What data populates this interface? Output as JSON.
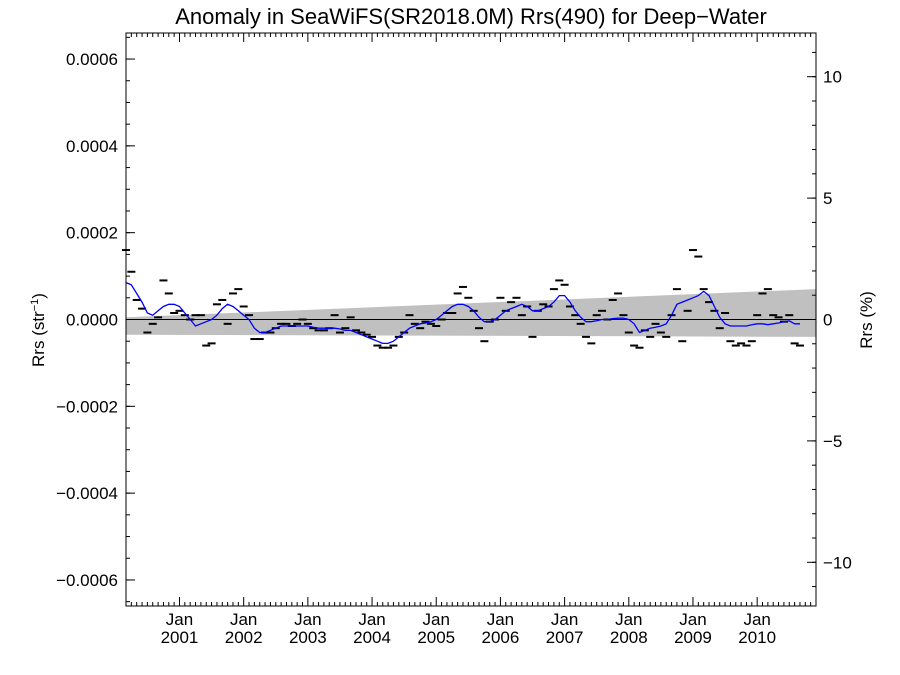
{
  "chart_data": {
    "type": "scatter",
    "title": "Anomaly in SeaWiFS(SR2018.0M) Rrs(490) for Deep−Water",
    "ylabel": "Rrs (str",
    "ylabel_sup": "−1",
    "ylabel_close": ")",
    "y2label": "Rrs (%)",
    "xlim": [
      "2000-03",
      "2010-12"
    ],
    "ylim": [
      -0.00066,
      0.00066
    ],
    "y2lim": [
      -11.8,
      11.8
    ],
    "yticks": [
      {
        "v": -0.0006,
        "label": "−0.0006"
      },
      {
        "v": -0.0004,
        "label": "−0.0004"
      },
      {
        "v": -0.0002,
        "label": "−0.0002"
      },
      {
        "v": 0.0,
        "label": "0.0000"
      },
      {
        "v": 0.0002,
        "label": "0.0002"
      },
      {
        "v": 0.0004,
        "label": "0.0004"
      },
      {
        "v": 0.0006,
        "label": "0.0006"
      }
    ],
    "y2ticks": [
      {
        "v": -10,
        "label": "−10"
      },
      {
        "v": -5,
        "label": "−5"
      },
      {
        "v": 0,
        "label": "0"
      },
      {
        "v": 5,
        "label": "5"
      },
      {
        "v": 10,
        "label": "10"
      }
    ],
    "xticks": [
      {
        "date": "2001-01",
        "month": "Jan",
        "year": "2001"
      },
      {
        "date": "2002-01",
        "month": "Jan",
        "year": "2002"
      },
      {
        "date": "2003-01",
        "month": "Jan",
        "year": "2003"
      },
      {
        "date": "2004-01",
        "month": "Jan",
        "year": "2004"
      },
      {
        "date": "2005-01",
        "month": "Jan",
        "year": "2005"
      },
      {
        "date": "2006-01",
        "month": "Jan",
        "year": "2006"
      },
      {
        "date": "2007-01",
        "month": "Jan",
        "year": "2007"
      },
      {
        "date": "2008-01",
        "month": "Jan",
        "year": "2008"
      },
      {
        "date": "2009-01",
        "month": "Jan",
        "year": "2009"
      },
      {
        "date": "2010-01",
        "month": "Jan",
        "year": "2010"
      }
    ],
    "trend_band": {
      "start": "2000-03",
      "end": "2010-12",
      "upper": [
        5e-06,
        7e-05
      ],
      "lower": [
        -3.5e-05,
        -4e-05
      ]
    },
    "zero_line": 0.0,
    "colors": {
      "band": "#c0c0c0",
      "smooth": "#0000ff",
      "points": "#000000",
      "zero": "#000000"
    },
    "monthly_anomalies": [
      {
        "date": "2000-03",
        "y": 0.00016
      },
      {
        "date": "2000-04",
        "y": 0.00011
      },
      {
        "date": "2000-05",
        "y": 4.5e-05
      },
      {
        "date": "2000-06",
        "y": 2.5e-05
      },
      {
        "date": "2000-07",
        "y": -3e-05
      },
      {
        "date": "2000-08",
        "y": -1e-05
      },
      {
        "date": "2000-09",
        "y": 5e-06
      },
      {
        "date": "2000-10",
        "y": 9e-05
      },
      {
        "date": "2000-11",
        "y": 6e-05
      },
      {
        "date": "2000-12",
        "y": 1.5e-05
      },
      {
        "date": "2001-01",
        "y": 2e-05
      },
      {
        "date": "2001-02",
        "y": 1e-05
      },
      {
        "date": "2001-03",
        "y": 0.0
      },
      {
        "date": "2001-04",
        "y": 1e-05
      },
      {
        "date": "2001-05",
        "y": 1e-05
      },
      {
        "date": "2001-06",
        "y": -6e-05
      },
      {
        "date": "2001-07",
        "y": -5.5e-05
      },
      {
        "date": "2001-08",
        "y": 3.5e-05
      },
      {
        "date": "2001-09",
        "y": 4.5e-05
      },
      {
        "date": "2001-10",
        "y": -1e-05
      },
      {
        "date": "2001-11",
        "y": 6e-05
      },
      {
        "date": "2001-12",
        "y": 7e-05
      },
      {
        "date": "2002-01",
        "y": 3e-05
      },
      {
        "date": "2002-02",
        "y": 1e-05
      },
      {
        "date": "2002-03",
        "y": -4.5e-05
      },
      {
        "date": "2002-04",
        "y": -4.5e-05
      },
      {
        "date": "2002-05",
        "y": -3e-05
      },
      {
        "date": "2002-06",
        "y": -3e-05
      },
      {
        "date": "2002-07",
        "y": -2e-05
      },
      {
        "date": "2002-08",
        "y": -1e-05
      },
      {
        "date": "2002-09",
        "y": -1e-05
      },
      {
        "date": "2002-10",
        "y": -1.5e-05
      },
      {
        "date": "2002-11",
        "y": -1e-05
      },
      {
        "date": "2002-12",
        "y": 0.0
      },
      {
        "date": "2003-01",
        "y": -1e-05
      },
      {
        "date": "2003-02",
        "y": -2e-05
      },
      {
        "date": "2003-03",
        "y": -2.5e-05
      },
      {
        "date": "2003-04",
        "y": -2.5e-05
      },
      {
        "date": "2003-05",
        "y": -2e-05
      },
      {
        "date": "2003-06",
        "y": 1e-05
      },
      {
        "date": "2003-07",
        "y": -3e-05
      },
      {
        "date": "2003-08",
        "y": -2e-05
      },
      {
        "date": "2003-09",
        "y": 5e-06
      },
      {
        "date": "2003-10",
        "y": -2.5e-05
      },
      {
        "date": "2003-11",
        "y": -3e-05
      },
      {
        "date": "2003-12",
        "y": -3.5e-05
      },
      {
        "date": "2004-01",
        "y": -4e-05
      },
      {
        "date": "2004-02",
        "y": -6e-05
      },
      {
        "date": "2004-03",
        "y": -6.5e-05
      },
      {
        "date": "2004-04",
        "y": -6.5e-05
      },
      {
        "date": "2004-05",
        "y": -6e-05
      },
      {
        "date": "2004-06",
        "y": -4e-05
      },
      {
        "date": "2004-07",
        "y": -3e-05
      },
      {
        "date": "2004-08",
        "y": 1e-05
      },
      {
        "date": "2004-09",
        "y": -1e-05
      },
      {
        "date": "2004-10",
        "y": -2e-05
      },
      {
        "date": "2004-11",
        "y": -5e-06
      },
      {
        "date": "2004-12",
        "y": -1e-05
      },
      {
        "date": "2005-01",
        "y": -1.5e-05
      },
      {
        "date": "2005-02",
        "y": 0.0
      },
      {
        "date": "2005-03",
        "y": 1.5e-05
      },
      {
        "date": "2005-04",
        "y": 1.5e-05
      },
      {
        "date": "2005-05",
        "y": 6e-05
      },
      {
        "date": "2005-06",
        "y": 7.5e-05
      },
      {
        "date": "2005-07",
        "y": 5e-05
      },
      {
        "date": "2005-08",
        "y": 2e-05
      },
      {
        "date": "2005-09",
        "y": -2e-05
      },
      {
        "date": "2005-10",
        "y": -5e-05
      },
      {
        "date": "2005-11",
        "y": -5e-06
      },
      {
        "date": "2005-12",
        "y": 0.0
      },
      {
        "date": "2006-01",
        "y": 5e-05
      },
      {
        "date": "2006-02",
        "y": 2e-05
      },
      {
        "date": "2006-03",
        "y": 4e-05
      },
      {
        "date": "2006-04",
        "y": 5e-05
      },
      {
        "date": "2006-05",
        "y": 1e-05
      },
      {
        "date": "2006-06",
        "y": 3e-05
      },
      {
        "date": "2006-07",
        "y": -4e-05
      },
      {
        "date": "2006-08",
        "y": 2e-05
      },
      {
        "date": "2006-09",
        "y": 3.5e-05
      },
      {
        "date": "2006-10",
        "y": 3e-05
      },
      {
        "date": "2006-11",
        "y": 7e-05
      },
      {
        "date": "2006-12",
        "y": 9e-05
      },
      {
        "date": "2007-01",
        "y": 8e-05
      },
      {
        "date": "2007-02",
        "y": 3e-05
      },
      {
        "date": "2007-03",
        "y": 1e-05
      },
      {
        "date": "2007-04",
        "y": -1e-05
      },
      {
        "date": "2007-05",
        "y": -4e-05
      },
      {
        "date": "2007-06",
        "y": -5.5e-05
      },
      {
        "date": "2007-07",
        "y": 1e-05
      },
      {
        "date": "2007-08",
        "y": 2e-05
      },
      {
        "date": "2007-09",
        "y": 0.0
      },
      {
        "date": "2007-10",
        "y": 4.5e-05
      },
      {
        "date": "2007-11",
        "y": 6e-05
      },
      {
        "date": "2007-12",
        "y": 1e-05
      },
      {
        "date": "2008-01",
        "y": -3e-05
      },
      {
        "date": "2008-02",
        "y": -6e-05
      },
      {
        "date": "2008-03",
        "y": -6.5e-05
      },
      {
        "date": "2008-04",
        "y": -2.5e-05
      },
      {
        "date": "2008-05",
        "y": -4e-05
      },
      {
        "date": "2008-06",
        "y": -1e-05
      },
      {
        "date": "2008-07",
        "y": -3e-05
      },
      {
        "date": "2008-08",
        "y": -4e-05
      },
      {
        "date": "2008-09",
        "y": 1e-05
      },
      {
        "date": "2008-10",
        "y": 7e-05
      },
      {
        "date": "2008-11",
        "y": -5e-05
      },
      {
        "date": "2008-12",
        "y": 2e-05
      },
      {
        "date": "2009-01",
        "y": 0.00016
      },
      {
        "date": "2009-02",
        "y": 0.000145
      },
      {
        "date": "2009-03",
        "y": 7e-05
      },
      {
        "date": "2009-04",
        "y": 4e-05
      },
      {
        "date": "2009-05",
        "y": 2e-05
      },
      {
        "date": "2009-06",
        "y": -2e-05
      },
      {
        "date": "2009-07",
        "y": 1.5e-05
      },
      {
        "date": "2009-08",
        "y": -5e-05
      },
      {
        "date": "2009-09",
        "y": -6e-05
      },
      {
        "date": "2009-10",
        "y": -5.5e-05
      },
      {
        "date": "2009-11",
        "y": -6e-05
      },
      {
        "date": "2009-12",
        "y": -5e-05
      },
      {
        "date": "2010-01",
        "y": 1e-05
      },
      {
        "date": "2010-02",
        "y": 6e-05
      },
      {
        "date": "2010-03",
        "y": 7e-05
      },
      {
        "date": "2010-04",
        "y": 1e-05
      },
      {
        "date": "2010-05",
        "y": 5e-06
      },
      {
        "date": "2010-06",
        "y": -5e-06
      },
      {
        "date": "2010-07",
        "y": 1e-05
      },
      {
        "date": "2010-08",
        "y": -5.5e-05
      },
      {
        "date": "2010-09",
        "y": -6e-05
      }
    ],
    "smoothed": [
      {
        "date": "2000-03",
        "y": 8.5e-05
      },
      {
        "date": "2000-04",
        "y": 8e-05
      },
      {
        "date": "2000-05",
        "y": 6e-05
      },
      {
        "date": "2000-06",
        "y": 4e-05
      },
      {
        "date": "2000-07",
        "y": 1.5e-05
      },
      {
        "date": "2000-08",
        "y": 1e-05
      },
      {
        "date": "2000-09",
        "y": 2e-05
      },
      {
        "date": "2000-10",
        "y": 3e-05
      },
      {
        "date": "2000-11",
        "y": 3.5e-05
      },
      {
        "date": "2000-12",
        "y": 3.5e-05
      },
      {
        "date": "2001-01",
        "y": 3e-05
      },
      {
        "date": "2001-02",
        "y": 1.5e-05
      },
      {
        "date": "2001-03",
        "y": 0.0
      },
      {
        "date": "2001-04",
        "y": -1.5e-05
      },
      {
        "date": "2001-05",
        "y": -1e-05
      },
      {
        "date": "2001-06",
        "y": -5e-06
      },
      {
        "date": "2001-07",
        "y": 0.0
      },
      {
        "date": "2001-08",
        "y": 1e-05
      },
      {
        "date": "2001-09",
        "y": 2.5e-05
      },
      {
        "date": "2001-10",
        "y": 3.5e-05
      },
      {
        "date": "2001-11",
        "y": 3e-05
      },
      {
        "date": "2001-12",
        "y": 2e-05
      },
      {
        "date": "2002-01",
        "y": 1e-05
      },
      {
        "date": "2002-02",
        "y": 0.0
      },
      {
        "date": "2002-03",
        "y": -2e-05
      },
      {
        "date": "2002-04",
        "y": -3e-05
      },
      {
        "date": "2002-05",
        "y": -3e-05
      },
      {
        "date": "2002-06",
        "y": -2.5e-05
      },
      {
        "date": "2002-07",
        "y": -2e-05
      },
      {
        "date": "2002-08",
        "y": -1.5e-05
      },
      {
        "date": "2002-09",
        "y": -1.5e-05
      },
      {
        "date": "2002-10",
        "y": -1.5e-05
      },
      {
        "date": "2002-11",
        "y": -1.5e-05
      },
      {
        "date": "2002-12",
        "y": -1.5e-05
      },
      {
        "date": "2003-01",
        "y": -1.5e-05
      },
      {
        "date": "2003-02",
        "y": -1.8e-05
      },
      {
        "date": "2003-03",
        "y": -2e-05
      },
      {
        "date": "2003-04",
        "y": -2e-05
      },
      {
        "date": "2003-05",
        "y": -2e-05
      },
      {
        "date": "2003-06",
        "y": -2e-05
      },
      {
        "date": "2003-07",
        "y": -2.2e-05
      },
      {
        "date": "2003-08",
        "y": -2.5e-05
      },
      {
        "date": "2003-09",
        "y": -2.5e-05
      },
      {
        "date": "2003-10",
        "y": -3e-05
      },
      {
        "date": "2003-11",
        "y": -3.5e-05
      },
      {
        "date": "2003-12",
        "y": -4e-05
      },
      {
        "date": "2004-01",
        "y": -4.5e-05
      },
      {
        "date": "2004-02",
        "y": -5e-05
      },
      {
        "date": "2004-03",
        "y": -5.5e-05
      },
      {
        "date": "2004-04",
        "y": -5.5e-05
      },
      {
        "date": "2004-05",
        "y": -5e-05
      },
      {
        "date": "2004-06",
        "y": -4e-05
      },
      {
        "date": "2004-07",
        "y": -3e-05
      },
      {
        "date": "2004-08",
        "y": -2e-05
      },
      {
        "date": "2004-09",
        "y": -1.5e-05
      },
      {
        "date": "2004-10",
        "y": -1e-05
      },
      {
        "date": "2004-11",
        "y": -8e-06
      },
      {
        "date": "2004-12",
        "y": -5e-06
      },
      {
        "date": "2005-01",
        "y": 0.0
      },
      {
        "date": "2005-02",
        "y": 1e-05
      },
      {
        "date": "2005-03",
        "y": 2e-05
      },
      {
        "date": "2005-04",
        "y": 3e-05
      },
      {
        "date": "2005-05",
        "y": 3.5e-05
      },
      {
        "date": "2005-06",
        "y": 3.5e-05
      },
      {
        "date": "2005-07",
        "y": 3e-05
      },
      {
        "date": "2005-08",
        "y": 2e-05
      },
      {
        "date": "2005-09",
        "y": 5e-06
      },
      {
        "date": "2005-10",
        "y": -5e-06
      },
      {
        "date": "2005-11",
        "y": -5e-06
      },
      {
        "date": "2005-12",
        "y": 0.0
      },
      {
        "date": "2006-01",
        "y": 1e-05
      },
      {
        "date": "2006-02",
        "y": 2e-05
      },
      {
        "date": "2006-03",
        "y": 2.5e-05
      },
      {
        "date": "2006-04",
        "y": 3e-05
      },
      {
        "date": "2006-05",
        "y": 3.5e-05
      },
      {
        "date": "2006-06",
        "y": 3e-05
      },
      {
        "date": "2006-07",
        "y": 2e-05
      },
      {
        "date": "2006-08",
        "y": 2e-05
      },
      {
        "date": "2006-09",
        "y": 2.5e-05
      },
      {
        "date": "2006-10",
        "y": 3e-05
      },
      {
        "date": "2006-11",
        "y": 4e-05
      },
      {
        "date": "2006-12",
        "y": 5.5e-05
      },
      {
        "date": "2007-01",
        "y": 5.5e-05
      },
      {
        "date": "2007-02",
        "y": 4e-05
      },
      {
        "date": "2007-03",
        "y": 2e-05
      },
      {
        "date": "2007-04",
        "y": 5e-06
      },
      {
        "date": "2007-05",
        "y": -5e-06
      },
      {
        "date": "2007-06",
        "y": -5e-06
      },
      {
        "date": "2007-07",
        "y": -3e-06
      },
      {
        "date": "2007-08",
        "y": 0.0
      },
      {
        "date": "2007-09",
        "y": 0.0
      },
      {
        "date": "2007-10",
        "y": 2e-06
      },
      {
        "date": "2007-11",
        "y": 3e-06
      },
      {
        "date": "2007-12",
        "y": 3e-06
      },
      {
        "date": "2008-01",
        "y": 0.0
      },
      {
        "date": "2008-02",
        "y": -1e-05
      },
      {
        "date": "2008-03",
        "y": -3e-05
      },
      {
        "date": "2008-04",
        "y": -2.5e-05
      },
      {
        "date": "2008-05",
        "y": -2e-05
      },
      {
        "date": "2008-06",
        "y": -1.8e-05
      },
      {
        "date": "2008-07",
        "y": -1.5e-05
      },
      {
        "date": "2008-08",
        "y": -1e-05
      },
      {
        "date": "2008-09",
        "y": 1e-05
      },
      {
        "date": "2008-10",
        "y": 3.5e-05
      },
      {
        "date": "2008-11",
        "y": 4e-05
      },
      {
        "date": "2008-12",
        "y": 4.5e-05
      },
      {
        "date": "2009-01",
        "y": 5e-05
      },
      {
        "date": "2009-02",
        "y": 5.5e-05
      },
      {
        "date": "2009-03",
        "y": 6.5e-05
      },
      {
        "date": "2009-04",
        "y": 5.5e-05
      },
      {
        "date": "2009-05",
        "y": 3e-05
      },
      {
        "date": "2009-06",
        "y": 5e-06
      },
      {
        "date": "2009-07",
        "y": -1e-05
      },
      {
        "date": "2009-08",
        "y": -1.5e-05
      },
      {
        "date": "2009-09",
        "y": -1.5e-05
      },
      {
        "date": "2009-10",
        "y": -1.5e-05
      },
      {
        "date": "2009-11",
        "y": -1.5e-05
      },
      {
        "date": "2009-12",
        "y": -1.2e-05
      },
      {
        "date": "2010-01",
        "y": -1e-05
      },
      {
        "date": "2010-02",
        "y": -1e-05
      },
      {
        "date": "2010-03",
        "y": -1.2e-05
      },
      {
        "date": "2010-04",
        "y": -1e-05
      },
      {
        "date": "2010-05",
        "y": -8e-06
      },
      {
        "date": "2010-06",
        "y": -5e-06
      },
      {
        "date": "2010-07",
        "y": -3e-06
      },
      {
        "date": "2010-08",
        "y": -1e-05
      },
      {
        "date": "2010-09",
        "y": -1e-05
      }
    ]
  }
}
